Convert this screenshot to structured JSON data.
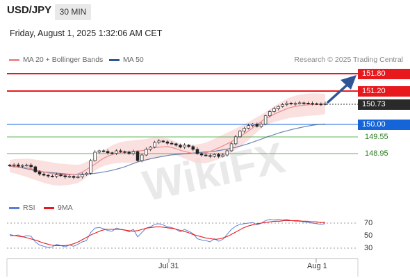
{
  "header": {
    "pair": "USD/JPY",
    "timeframe": "30 MIN",
    "datetime": "Friday, August 1, 2025 1:32:06 AM CET"
  },
  "legend": {
    "ma20": "MA 20 + Bollinger Bands",
    "ma50": "MA 50",
    "ma20_color": "#f08a8a",
    "ma50_color": "#2f5597"
  },
  "credit": "Research © 2025 Trading Central",
  "rsi_legend": {
    "rsi": "RSI",
    "ma9": "9MA",
    "rsi_color": "#5b7fd6",
    "ma9_color": "#e8191c"
  },
  "levels": {
    "r2": "151.80",
    "r1": "151.20",
    "last": "150.73",
    "pivot": "150.00",
    "s1": "149.55",
    "s2": "148.95",
    "resistance_color": "#e8191c",
    "pivot_color": "#1565d8",
    "support_color": "#5fb35a"
  },
  "rsi_ticks": [
    "70",
    "50",
    "30"
  ],
  "x_ticks": [
    "Jul 31",
    "Aug 1"
  ],
  "watermark": "WikiFX",
  "chart_data": {
    "type": "candlestick",
    "ylim": [
      148.2,
      152.0
    ],
    "close_series": [
      148.52,
      148.55,
      148.5,
      148.53,
      148.54,
      148.48,
      148.3,
      148.22,
      148.18,
      148.15,
      148.14,
      148.2,
      148.16,
      148.12,
      148.14,
      148.1,
      148.12,
      148.2,
      148.25,
      148.7,
      149.0,
      149.05,
      149.03,
      148.98,
      148.96,
      149.05,
      149.02,
      149.0,
      148.95,
      149.02,
      148.7,
      148.9,
      149.1,
      149.18,
      149.35,
      149.4,
      149.37,
      149.32,
      149.3,
      149.25,
      149.18,
      149.25,
      149.2,
      149.1,
      148.95,
      148.9,
      148.88,
      148.85,
      148.92,
      148.85,
      148.9,
      149.05,
      149.3,
      149.55,
      149.75,
      149.85,
      149.95,
      150.0,
      149.92,
      150.0,
      150.3,
      150.45,
      150.55,
      150.63,
      150.7,
      150.75,
      150.72,
      150.74,
      150.76,
      150.75,
      150.74,
      150.73,
      150.72,
      150.71,
      150.73
    ],
    "ma20_series": [
      148.5,
      148.5,
      148.48,
      148.46,
      148.44,
      148.4,
      148.36,
      148.32,
      148.28,
      148.25,
      148.22,
      148.2,
      148.2,
      148.2,
      148.21,
      148.22,
      148.28,
      148.38,
      148.48,
      148.58,
      148.7,
      148.8,
      148.87,
      148.93,
      148.97,
      149.0,
      149.01,
      149.02,
      149.04,
      149.05,
      149.07,
      149.12,
      149.16,
      149.18,
      149.19,
      149.2,
      149.17,
      149.12,
      149.06,
      149.02,
      148.98,
      148.95,
      148.95,
      148.96,
      149.0,
      149.06,
      149.13,
      149.2,
      149.28,
      149.36,
      149.45,
      149.55,
      149.65,
      149.76,
      149.88,
      150.0,
      150.12,
      150.22,
      150.3,
      150.38,
      150.45,
      150.52,
      150.58,
      150.62,
      150.65,
      150.67,
      150.69,
      150.7,
      150.71,
      150.71,
      150.72
    ],
    "ma50_series": [
      148.5,
      148.48,
      148.44,
      148.39,
      148.34,
      148.3,
      148.28,
      148.26,
      148.24,
      148.22,
      148.21,
      148.21,
      148.22,
      148.24,
      148.27,
      148.31,
      148.36,
      148.42,
      148.49,
      148.58,
      148.66,
      148.72,
      148.77,
      148.82,
      148.86,
      148.9,
      148.92,
      148.94,
      148.96,
      148.98,
      149.0,
      149.02,
      149.04,
      149.08,
      149.12,
      149.17,
      149.23,
      149.3,
      149.38,
      149.46,
      149.55,
      149.62,
      149.7,
      149.76,
      149.82,
      149.87,
      149.92,
      149.96,
      149.99,
      150.0
    ],
    "rsi": {
      "ylim": [
        20,
        80
      ],
      "rsi_series": [
        52,
        50,
        51,
        48,
        50,
        49,
        40,
        35,
        33,
        31,
        32,
        36,
        34,
        32,
        35,
        33,
        36,
        40,
        42,
        55,
        62,
        63,
        61,
        58,
        57,
        62,
        60,
        59,
        56,
        60,
        48,
        55,
        62,
        64,
        68,
        69,
        67,
        64,
        63,
        60,
        56,
        60,
        57,
        53,
        45,
        43,
        42,
        40,
        45,
        41,
        44,
        52,
        60,
        65,
        68,
        69,
        70,
        71,
        67,
        70,
        74,
        76,
        75,
        76,
        75,
        76,
        74,
        73,
        73,
        72,
        71,
        70,
        69,
        68,
        69
      ],
      "ma9_series": [
        50,
        50,
        49,
        48,
        46,
        44,
        42,
        39,
        37,
        35,
        34,
        34,
        34,
        35,
        37,
        40,
        44,
        48,
        52,
        55,
        58,
        60,
        60,
        60,
        60,
        59,
        58,
        57,
        58,
        60,
        62,
        63,
        64,
        64,
        63,
        62,
        61,
        59,
        57,
        55,
        52,
        50,
        48,
        46,
        45,
        44,
        45,
        47,
        50,
        54,
        58,
        62,
        65,
        67,
        69,
        70,
        71,
        72,
        73,
        73,
        74,
        74,
        74,
        74,
        73,
        73,
        72,
        72,
        71,
        71
      ]
    }
  }
}
